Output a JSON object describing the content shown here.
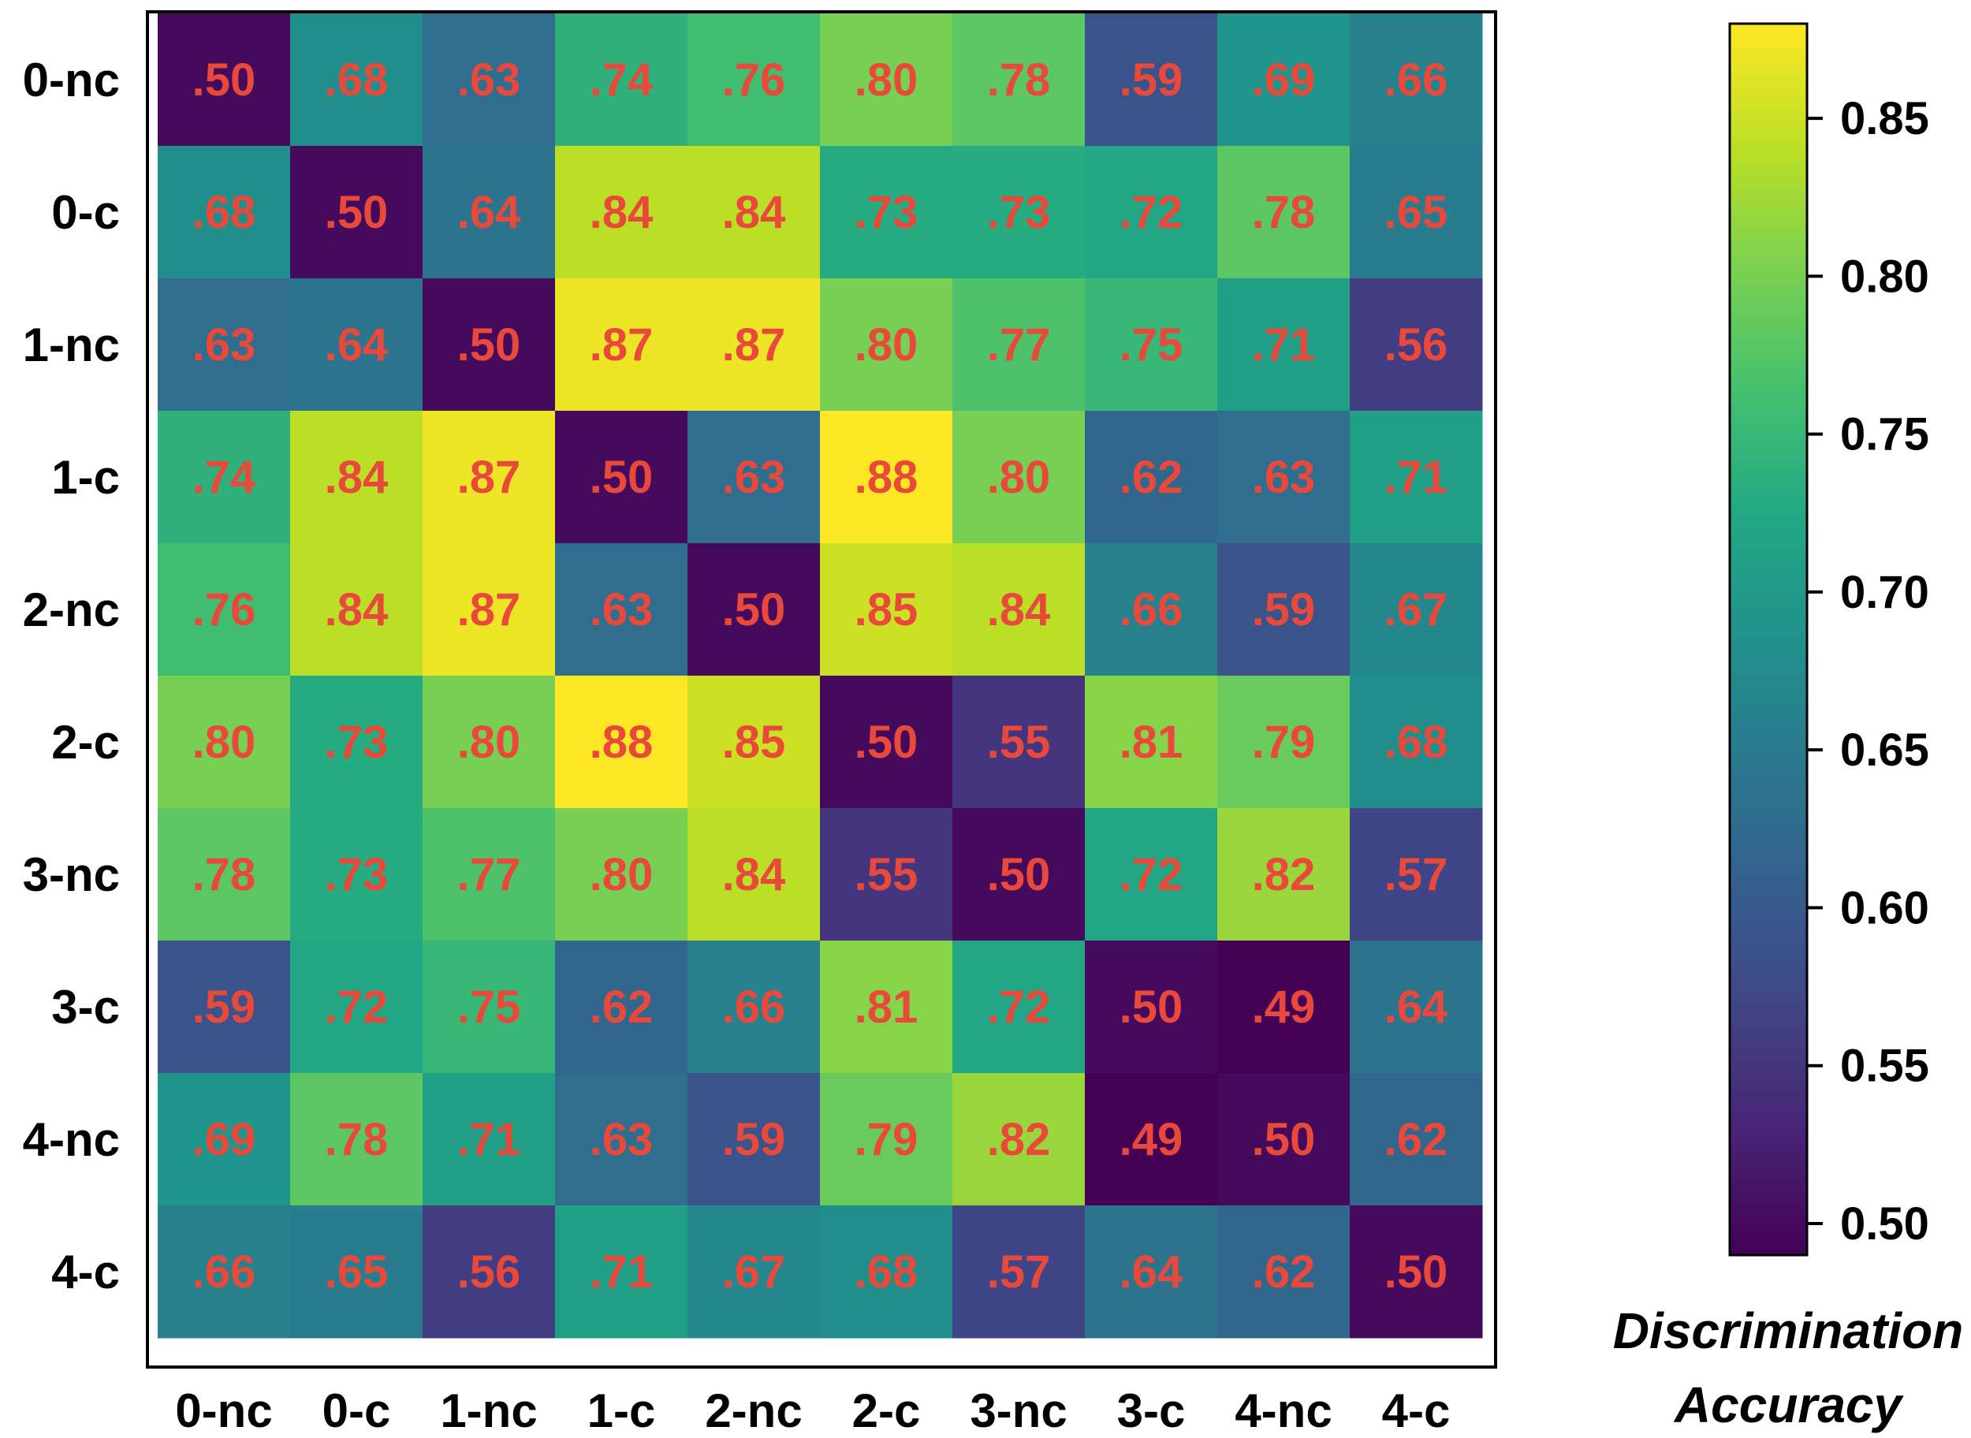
{
  "chart_data": {
    "type": "heatmap",
    "title": "",
    "xlabel": "",
    "ylabel": "",
    "x_categories": [
      "0-nc",
      "0-c",
      "1-nc",
      "1-c",
      "2-nc",
      "2-c",
      "3-nc",
      "3-c",
      "4-nc",
      "4-c"
    ],
    "y_categories": [
      "0-nc",
      "0-c",
      "1-nc",
      "1-c",
      "2-nc",
      "2-c",
      "3-nc",
      "3-c",
      "4-nc",
      "4-c"
    ],
    "values": [
      [
        0.5,
        0.68,
        0.63,
        0.74,
        0.76,
        0.8,
        0.78,
        0.59,
        0.69,
        0.66
      ],
      [
        0.68,
        0.5,
        0.64,
        0.84,
        0.84,
        0.73,
        0.73,
        0.72,
        0.78,
        0.65
      ],
      [
        0.63,
        0.64,
        0.5,
        0.87,
        0.87,
        0.8,
        0.77,
        0.75,
        0.71,
        0.56
      ],
      [
        0.74,
        0.84,
        0.87,
        0.5,
        0.63,
        0.88,
        0.8,
        0.62,
        0.63,
        0.71
      ],
      [
        0.76,
        0.84,
        0.87,
        0.63,
        0.5,
        0.85,
        0.84,
        0.66,
        0.59,
        0.67
      ],
      [
        0.8,
        0.73,
        0.8,
        0.88,
        0.85,
        0.5,
        0.55,
        0.81,
        0.79,
        0.68
      ],
      [
        0.78,
        0.73,
        0.77,
        0.8,
        0.84,
        0.55,
        0.5,
        0.72,
        0.82,
        0.57
      ],
      [
        0.59,
        0.72,
        0.75,
        0.62,
        0.66,
        0.81,
        0.72,
        0.5,
        0.49,
        0.64
      ],
      [
        0.69,
        0.78,
        0.71,
        0.63,
        0.59,
        0.79,
        0.82,
        0.49,
        0.5,
        0.62
      ],
      [
        0.66,
        0.65,
        0.56,
        0.71,
        0.67,
        0.68,
        0.57,
        0.64,
        0.62,
        0.5
      ]
    ],
    "cell_labels": [
      [
        ".50",
        ".68",
        ".63",
        ".74",
        ".76",
        ".80",
        ".78",
        ".59",
        ".69",
        ".66"
      ],
      [
        ".68",
        ".50",
        ".64",
        ".84",
        ".84",
        ".73",
        ".73",
        ".72",
        ".78",
        ".65"
      ],
      [
        ".63",
        ".64",
        ".50",
        ".87",
        ".87",
        ".80",
        ".77",
        ".75",
        ".71",
        ".56"
      ],
      [
        ".74",
        ".84",
        ".87",
        ".50",
        ".63",
        ".88",
        ".80",
        ".62",
        ".63",
        ".71"
      ],
      [
        ".76",
        ".84",
        ".87",
        ".63",
        ".50",
        ".85",
        ".84",
        ".66",
        ".59",
        ".67"
      ],
      [
        ".80",
        ".73",
        ".80",
        ".88",
        ".85",
        ".50",
        ".55",
        ".81",
        ".79",
        ".68"
      ],
      [
        ".78",
        ".73",
        ".77",
        ".80",
        ".84",
        ".55",
        ".50",
        ".72",
        ".82",
        ".57"
      ],
      [
        ".59",
        ".72",
        ".75",
        ".62",
        ".66",
        ".81",
        ".72",
        ".50",
        ".49",
        ".64"
      ],
      [
        ".69",
        ".78",
        ".71",
        ".63",
        ".59",
        ".79",
        ".82",
        ".49",
        ".50",
        ".62"
      ],
      [
        ".66",
        ".65",
        ".56",
        ".71",
        ".67",
        ".68",
        ".57",
        ".64",
        ".62",
        ".50"
      ]
    ],
    "colormap": "viridis",
    "color_range": [
      0.49,
      0.88
    ],
    "cell_label_color": "#e8493a",
    "colorbar": {
      "title_lines": [
        "Discrimination",
        "Accuracy"
      ],
      "ticks": [
        0.5,
        0.55,
        0.6,
        0.65,
        0.7,
        0.75,
        0.8,
        0.85
      ],
      "tick_labels": [
        "0.50",
        "0.55",
        "0.60",
        "0.65",
        "0.70",
        "0.75",
        "0.80",
        "0.85"
      ],
      "placement": "right"
    }
  }
}
